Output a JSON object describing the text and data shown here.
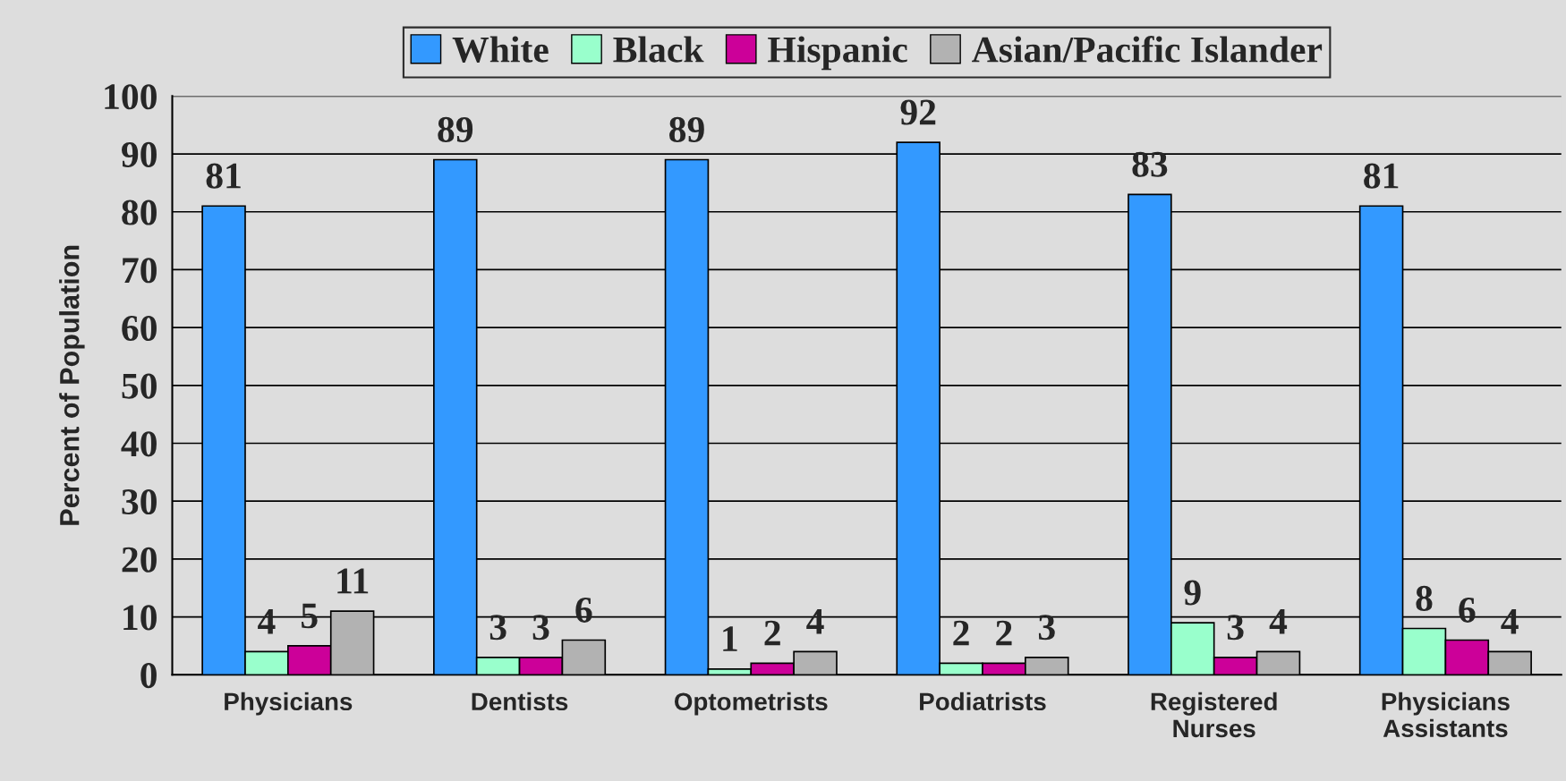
{
  "chart_data": {
    "type": "bar",
    "categories": [
      "Physicians",
      "Dentists",
      "Optometrists",
      "Podiatrists",
      "Registered\nNurses",
      "Physicians\nAssistants"
    ],
    "series": [
      {
        "name": "White",
        "color": "#3399ff",
        "values": [
          81,
          89,
          89,
          92,
          83,
          81
        ]
      },
      {
        "name": "Black",
        "color": "#99ffcc",
        "values": [
          4,
          3,
          1,
          2,
          9,
          8
        ]
      },
      {
        "name": "Hispanic",
        "color": "#cc0099",
        "values": [
          5,
          3,
          2,
          2,
          3,
          6
        ]
      },
      {
        "name": "Asian/Pacific Islander",
        "color": "#b2b2b2",
        "values": [
          11,
          6,
          4,
          3,
          4,
          4
        ]
      }
    ],
    "ylabel": "Percent of Population",
    "ylim": [
      0,
      100
    ],
    "yticks": [
      0,
      10,
      20,
      30,
      40,
      50,
      60,
      70,
      80,
      90,
      100
    ],
    "grid": "y",
    "legend": "top",
    "data_labels": true
  }
}
